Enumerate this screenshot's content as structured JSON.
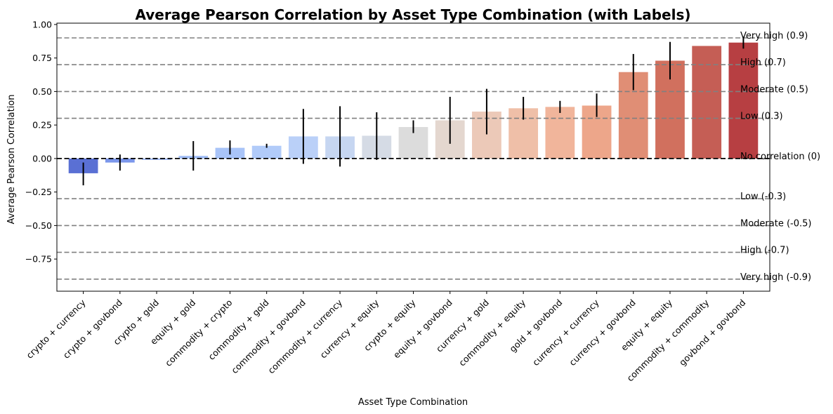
{
  "chart_data": {
    "type": "bar",
    "title": "Average Pearson Correlation by Asset Type Combination (with Labels)",
    "xlabel": "Asset Type Combination",
    "ylabel": "Average Pearson Correlation",
    "ylim": [
      -0.99,
      1.01
    ],
    "yticks": [
      {
        "value": 1.0,
        "label": "1.00"
      },
      {
        "value": 0.75,
        "label": "0.75"
      },
      {
        "value": 0.5,
        "label": "0.50"
      },
      {
        "value": 0.25,
        "label": "0.25"
      },
      {
        "value": 0.0,
        "label": "0.00"
      },
      {
        "value": -0.25,
        "label": "−0.25"
      },
      {
        "value": -0.5,
        "label": "−0.50"
      },
      {
        "value": -0.75,
        "label": "−0.75"
      }
    ],
    "grid": false,
    "categories": [
      "crypto + currency",
      "crypto + govbond",
      "crypto + gold",
      "equity + gold",
      "commodity + crypto",
      "commodity + gold",
      "commodity + govbond",
      "commodity + currency",
      "currency + equity",
      "crypto + equity",
      "equity + govbond",
      "currency + gold",
      "commodity + equity",
      "gold + govbond",
      "currency + currency",
      "currency + govbond",
      "equity + equity",
      "commodity + commodity",
      "govbond + govbond"
    ],
    "values": [
      -0.11,
      -0.03,
      -0.01,
      0.02,
      0.08,
      0.095,
      0.165,
      0.165,
      0.17,
      0.235,
      0.285,
      0.35,
      0.375,
      0.385,
      0.395,
      0.645,
      0.73,
      0.84,
      0.865
    ],
    "error_low": [
      -0.2,
      -0.09,
      null,
      -0.09,
      0.03,
      0.08,
      -0.04,
      -0.06,
      -0.01,
      0.19,
      0.11,
      0.18,
      0.29,
      0.34,
      0.31,
      0.51,
      0.59,
      null,
      0.82
    ],
    "error_high": [
      -0.03,
      0.03,
      null,
      0.13,
      0.135,
      0.11,
      0.37,
      0.39,
      0.345,
      0.285,
      0.46,
      0.52,
      0.46,
      0.43,
      0.485,
      0.78,
      0.87,
      null,
      0.91
    ],
    "colors": [
      "#5a70d4",
      "#7b96ea",
      "#9ab5f5",
      "#a5c0f8",
      "#a9c4f8",
      "#b1cbf9",
      "#bad0f8",
      "#c6d6f1",
      "#d5dbe5",
      "#dcdcdc",
      "#e4d7cf",
      "#ecc9b8",
      "#efbfa8",
      "#f1b59b",
      "#eda68a",
      "#e08e75",
      "#d1705e",
      "#c55e55",
      "#b73f42"
    ],
    "reference_lines": [
      {
        "value": 0.9,
        "label": "Very high (0.9)"
      },
      {
        "value": 0.7,
        "label": "High (0.7)"
      },
      {
        "value": 0.5,
        "label": "Moderate (0.5)"
      },
      {
        "value": 0.3,
        "label": "Low (0.3)"
      },
      {
        "value": 0.0,
        "label": "No correlation (0)"
      },
      {
        "value": -0.3,
        "label": "Low (-0.3)"
      },
      {
        "value": -0.5,
        "label": "Moderate (-0.5)"
      },
      {
        "value": -0.7,
        "label": "High (-0.7)"
      },
      {
        "value": -0.9,
        "label": "Very high (-0.9)"
      }
    ],
    "reference_line_color": "#808080",
    "zero_line_color": "#000000"
  }
}
